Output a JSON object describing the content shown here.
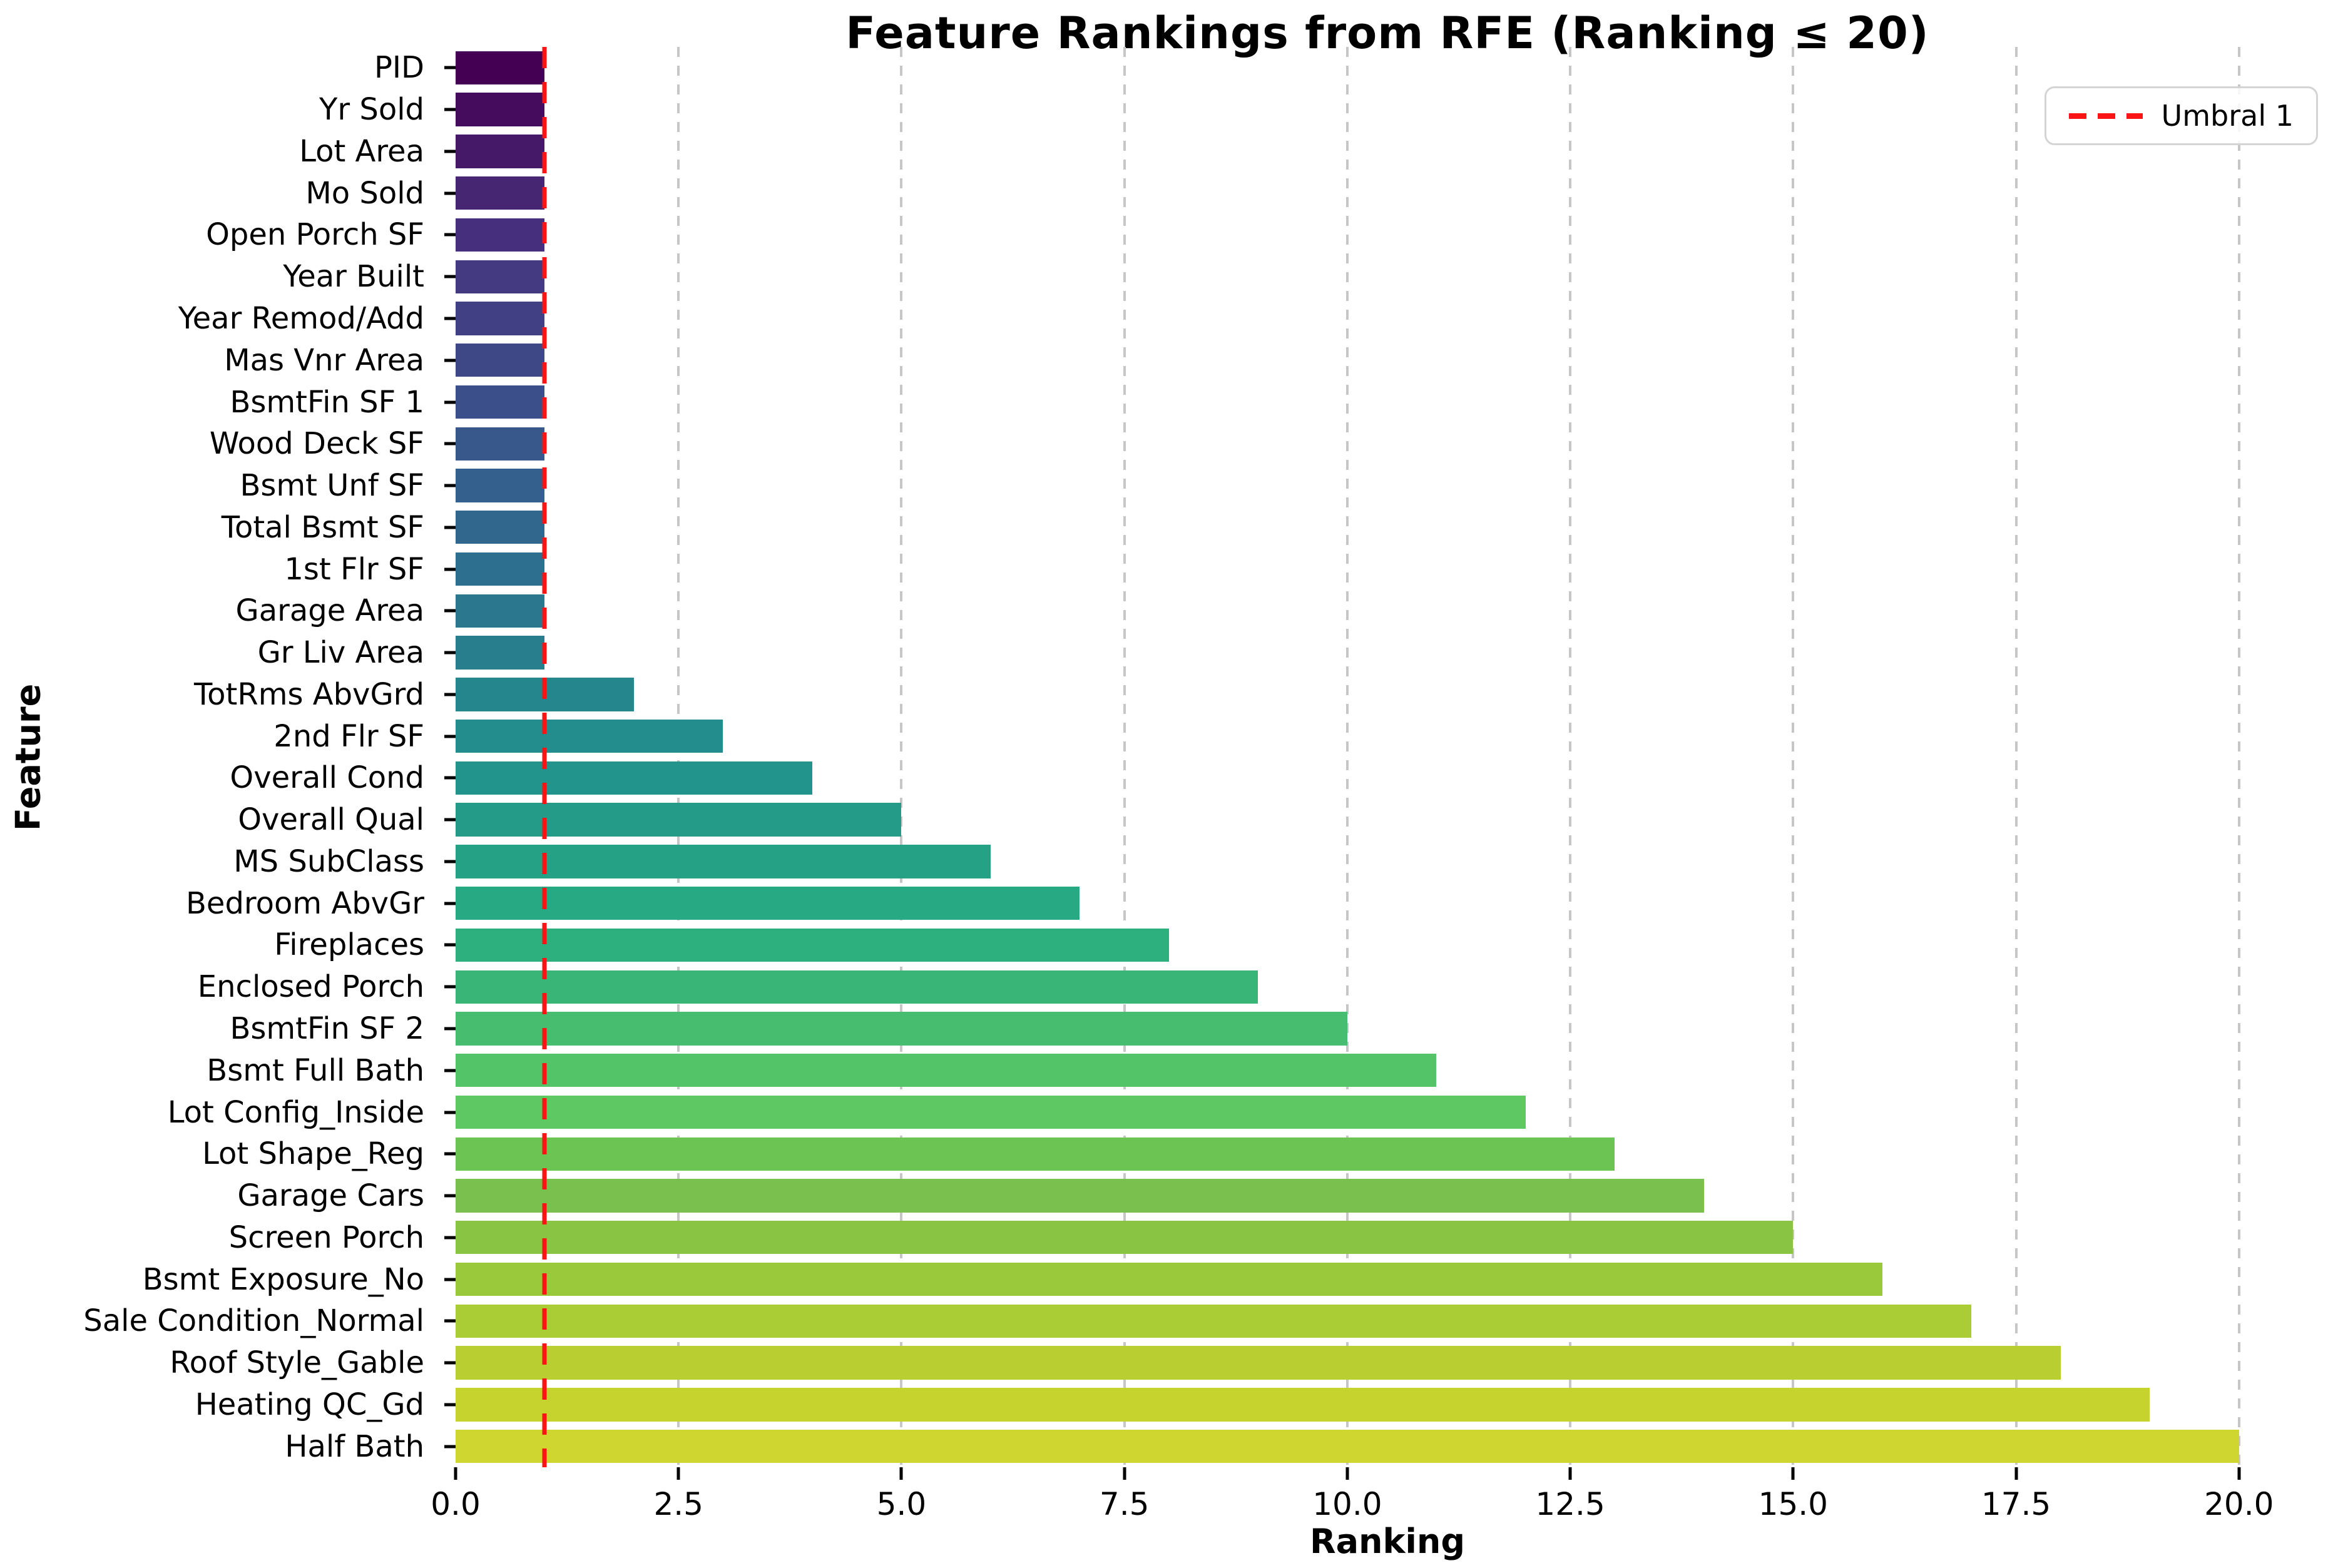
{
  "chart_data": {
    "type": "bar",
    "orientation": "horizontal",
    "title": "Feature Rankings from RFE (Ranking ≤ 20)",
    "xlabel": "Ranking",
    "ylabel": "Feature",
    "xlim": [
      0,
      20.9
    ],
    "grid": "vertical dashed gray",
    "legend_position": "upper right",
    "categories": [
      "PID",
      "Yr Sold",
      "Lot Area",
      "Mo Sold",
      "Open Porch SF",
      "Year Built",
      "Year Remod/Add",
      "Mas Vnr Area",
      "BsmtFin SF 1",
      "Wood Deck SF",
      "Bsmt Unf SF",
      "Total Bsmt SF",
      "1st Flr SF",
      "Garage Area",
      "Gr Liv Area",
      "TotRms AbvGrd",
      "2nd Flr SF",
      "Overall Cond",
      "Overall Qual",
      "MS SubClass",
      "Bedroom AbvGr",
      "Fireplaces",
      "Enclosed Porch",
      "BsmtFin SF 2",
      "Bsmt Full Bath",
      "Lot Config_Inside",
      "Lot Shape_Reg",
      "Garage Cars",
      "Screen Porch",
      "Bsmt Exposure_No",
      "Sale Condition_Normal",
      "Roof Style_Gable",
      "Heating QC_Gd",
      "Half Bath"
    ],
    "values": [
      1,
      1,
      1,
      1,
      1,
      1,
      1,
      1,
      1,
      1,
      1,
      1,
      1,
      1,
      1,
      2,
      3,
      4,
      5,
      6,
      7,
      8,
      9,
      10,
      11,
      12,
      13,
      14,
      15,
      16,
      17,
      18,
      19,
      20
    ],
    "bar_colors": [
      "#440154",
      "#450c5e",
      "#451968",
      "#462573",
      "#46307d",
      "#443a82",
      "#414084",
      "#3e4887",
      "#3b508a",
      "#38588c",
      "#34608d",
      "#31678d",
      "#2d6f8e",
      "#2a778e",
      "#287e8d",
      "#25868d",
      "#228d8c",
      "#22948b",
      "#239b88",
      "#25a285",
      "#27a983",
      "#2db07e",
      "#39b677",
      "#47bd6f",
      "#54c468",
      "#5ec962",
      "#6cc553",
      "#7ac04f",
      "#8ac443",
      "#9aca3c",
      "#aacd36",
      "#b9cf31",
      "#c6d32f",
      "#d0d630"
    ],
    "x_tick_values": [
      0,
      2.5,
      5,
      7.5,
      10,
      12.5,
      15,
      17.5,
      20
    ],
    "x_tick_labels": [
      "0.0",
      "2.5",
      "5.0",
      "7.5",
      "10.0",
      "12.5",
      "15.0",
      "17.5",
      "20.0"
    ],
    "threshold_line": {
      "x": 1,
      "label": "Umbral 1",
      "color": "#fb1414",
      "style": "dashed"
    }
  }
}
